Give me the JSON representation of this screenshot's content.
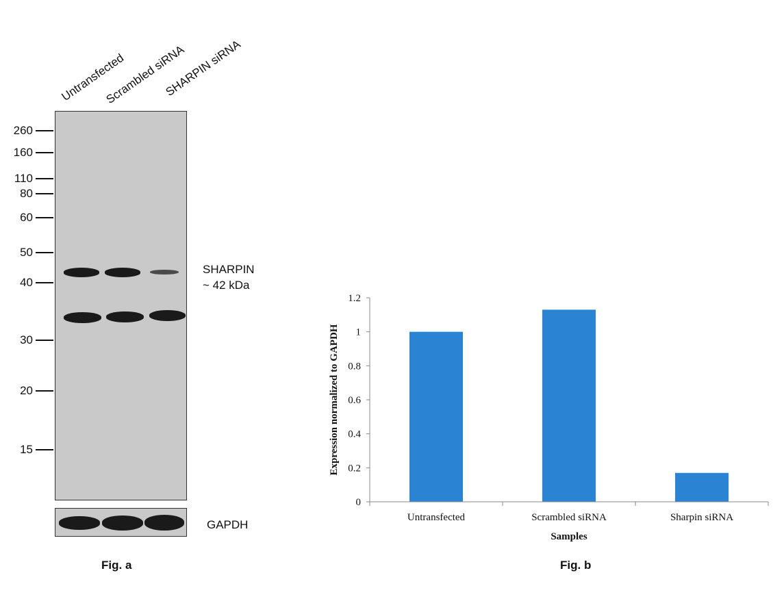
{
  "figure_a": {
    "lanes": [
      "Untransfected",
      "Scrambled siRNA",
      "SHARPIN siRNA"
    ],
    "mw_markers": [
      "260",
      "160",
      "110",
      "80",
      "60",
      "50",
      "40",
      "30",
      "20",
      "15"
    ],
    "target_name": "SHARPIN",
    "target_size": "~ 42 kDa",
    "loading_control": "GAPDH",
    "label": "Fig. a"
  },
  "figure_b": {
    "label": "Fig. b"
  },
  "chart_data": {
    "type": "bar",
    "categories": [
      "Untransfected",
      "Scrambled siRNA",
      "Sharpin siRNA"
    ],
    "values": [
      1.0,
      1.13,
      0.17
    ],
    "title": "",
    "xlabel": "Samples",
    "ylabel": "Expression normalized to GAPDH",
    "ylim": [
      0,
      1.2
    ],
    "yticks": [
      "0",
      "0.2",
      "0.4",
      "0.6",
      "0.8",
      "1",
      "1.2"
    ],
    "bar_color": "#2B83D3",
    "grid": false,
    "legend": "none"
  }
}
